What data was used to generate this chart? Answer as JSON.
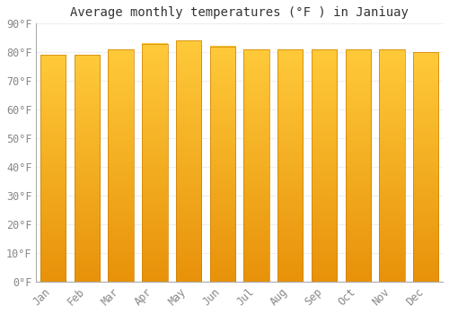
{
  "months": [
    "Jan",
    "Feb",
    "Mar",
    "Apr",
    "May",
    "Jun",
    "Jul",
    "Aug",
    "Sep",
    "Oct",
    "Nov",
    "Dec"
  ],
  "values": [
    79,
    79,
    81,
    83,
    84,
    82,
    81,
    81,
    81,
    81,
    81,
    80
  ],
  "bar_color_bottom": "#E8920A",
  "bar_color_top": "#FFCA3A",
  "title": "Average monthly temperatures (°F ) in Janiuay",
  "ylim": [
    0,
    90
  ],
  "yticks": [
    0,
    10,
    20,
    30,
    40,
    50,
    60,
    70,
    80,
    90
  ],
  "ytick_labels": [
    "0°F",
    "10°F",
    "20°F",
    "30°F",
    "40°F",
    "50°F",
    "60°F",
    "70°F",
    "80°F",
    "90°F"
  ],
  "background_color": "#FFFFFF",
  "grid_color": "#EEEEEE",
  "title_fontsize": 10,
  "tick_fontsize": 8.5
}
